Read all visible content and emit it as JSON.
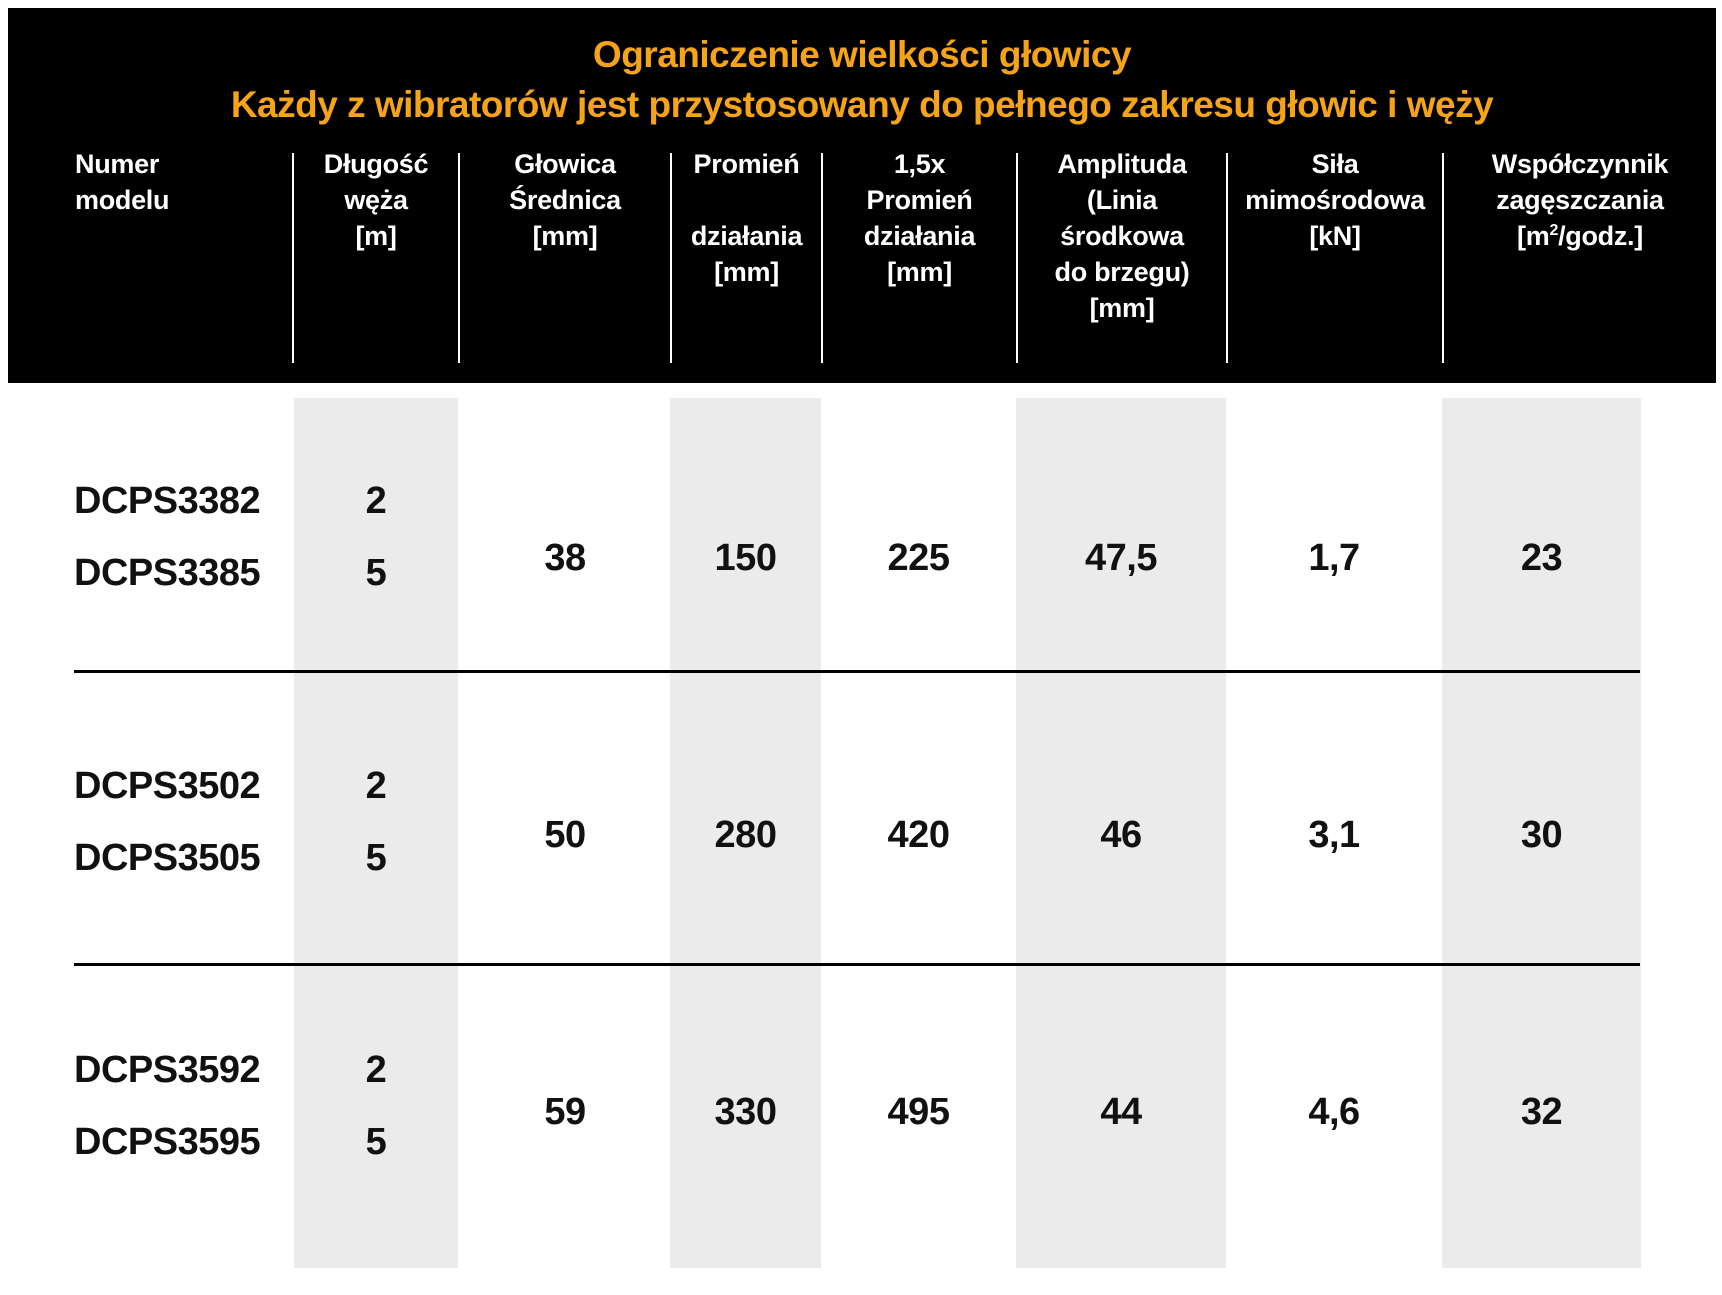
{
  "title": {
    "line1": "Ograniczenie wielkości głowicy",
    "line2": "Każdy z wibratorów jest przystosowany do pełnego zakresu głowic i węży"
  },
  "columns": [
    {
      "lines": [
        "Numer",
        "modelu"
      ]
    },
    {
      "lines": [
        "Długość",
        "węża",
        "[m]"
      ]
    },
    {
      "lines": [
        "Głowica",
        "Średnica",
        "[mm]"
      ]
    },
    {
      "lines": [
        "Promień",
        "",
        "działania",
        "[mm]"
      ]
    },
    {
      "lines": [
        "1,5x",
        "Promień",
        "działania",
        "[mm]"
      ]
    },
    {
      "lines": [
        "Amplituda",
        "(Linia",
        "środkowa",
        "do brzegu)",
        "[mm]"
      ]
    },
    {
      "lines": [
        "Siła",
        "mimośrodowa",
        "[kN]"
      ]
    },
    {
      "lines": [
        "Współczynnik",
        "zagęszczania",
        "[m",
        "2",
        "/godz.]"
      ]
    }
  ],
  "rows": [
    {
      "models": [
        "DCPS3382",
        "DCPS3385"
      ],
      "hose": [
        "2",
        "5"
      ],
      "diameter": "38",
      "radius": "150",
      "radius15": "225",
      "amplitude": "47,5",
      "force": "1,7",
      "compaction": "23"
    },
    {
      "models": [
        "DCPS3502",
        "DCPS3505"
      ],
      "hose": [
        "2",
        "5"
      ],
      "diameter": "50",
      "radius": "280",
      "radius15": "420",
      "amplitude": "46",
      "force": "3,1",
      "compaction": "30"
    },
    {
      "models": [
        "DCPS3592",
        "DCPS3595"
      ],
      "hose": [
        "2",
        "5"
      ],
      "diameter": "59",
      "radius": "330",
      "radius15": "495",
      "amplitude": "44",
      "force": "4,6",
      "compaction": "32"
    }
  ],
  "colors": {
    "header_bg": "#000000",
    "title": "#f5a318",
    "shade": "#ebebeb"
  }
}
